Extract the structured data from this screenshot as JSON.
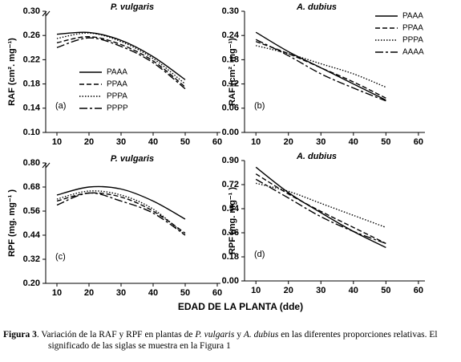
{
  "chart_data": [
    {
      "type": "line",
      "title": "P. vulgaris",
      "ylabel": "RAF (cm². mg⁻¹)",
      "annotation": "(a)",
      "legend": "lower-left",
      "x": [
        10,
        20,
        30,
        40,
        50
      ],
      "xlim": [
        6.5,
        61
      ],
      "xticks": [
        10,
        20,
        30,
        40,
        50,
        60
      ],
      "ylim": [
        0.1,
        0.3
      ],
      "yticks": [
        {
          "value": 0.1,
          "label": "0.10"
        },
        0.14,
        0.18,
        0.22,
        0.26,
        {
          "value": 0.3,
          "label": "0.30"
        }
      ],
      "series": [
        {
          "name": "PAAA",
          "color": "#000000",
          "dash": "solid",
          "values": [
            0.262,
            0.265,
            0.252,
            0.225,
            0.187
          ]
        },
        {
          "name": "PPAA",
          "color": "#000000",
          "dash": "dashed",
          "values": [
            0.248,
            0.258,
            0.245,
            0.218,
            0.175
          ]
        },
        {
          "name": "PPPA",
          "color": "#000000",
          "dash": "dotted",
          "values": [
            0.255,
            0.264,
            0.25,
            0.222,
            0.18
          ]
        },
        {
          "name": "PPPP",
          "color": "#000000",
          "dash": "dashdot",
          "values": [
            0.24,
            0.256,
            0.242,
            0.215,
            0.172
          ]
        }
      ]
    },
    {
      "type": "line",
      "title": "A. dubius",
      "ylabel": "RAF (cm². mg⁻¹)",
      "annotation": "(b)",
      "legend": "upper-right",
      "x": [
        10,
        20,
        30,
        40,
        50
      ],
      "xlim": [
        6.5,
        62
      ],
      "xticks": [
        10,
        20,
        30,
        40,
        50,
        60
      ],
      "ylim": [
        0,
        0.3
      ],
      "yticks": [
        {
          "value": 0,
          "label": "0.00"
        },
        0.06,
        0.12,
        0.18,
        0.24,
        {
          "value": 0.3,
          "label": "0.30"
        }
      ],
      "series": [
        {
          "name": "PAAA",
          "color": "#000000",
          "dash": "solid",
          "values": [
            0.248,
            0.2,
            0.16,
            0.12,
            0.08
          ]
        },
        {
          "name": "PPAA",
          "color": "#000000",
          "dash": "dashed",
          "values": [
            0.225,
            0.195,
            0.16,
            0.125,
            0.085
          ]
        },
        {
          "name": "PPPA",
          "color": "#000000",
          "dash": "dotted",
          "values": [
            0.215,
            0.195,
            0.17,
            0.145,
            0.112
          ]
        },
        {
          "name": "AAAA",
          "color": "#000000",
          "dash": "dashdot",
          "values": [
            0.23,
            0.19,
            0.145,
            0.11,
            0.078
          ]
        }
      ]
    },
    {
      "type": "line",
      "title": "P. vulgaris",
      "ylabel": "RPF (mg. mg⁻¹ )",
      "annotation": "(c)",
      "x": [
        10,
        20,
        30,
        40,
        50
      ],
      "xlim": [
        6.5,
        61
      ],
      "xticks": [
        10,
        20,
        30,
        40,
        50,
        60
      ],
      "ylim": [
        0.2,
        0.8
      ],
      "yticks": [
        {
          "value": 0.2,
          "label": "0.20"
        },
        0.32,
        0.44,
        0.56,
        0.68,
        {
          "value": 0.8,
          "label": "0.80"
        }
      ],
      "series": [
        {
          "color": "#000000",
          "dash": "solid",
          "values": [
            0.64,
            0.68,
            0.67,
            0.61,
            0.52
          ]
        },
        {
          "color": "#000000",
          "dash": "dashed",
          "values": [
            0.61,
            0.65,
            0.63,
            0.56,
            0.45
          ]
        },
        {
          "color": "#000000",
          "dash": "dotted",
          "values": [
            0.62,
            0.66,
            0.64,
            0.57,
            0.44
          ]
        },
        {
          "color": "#000000",
          "dash": "dashdot",
          "values": [
            0.59,
            0.65,
            0.61,
            0.55,
            0.44
          ]
        }
      ]
    },
    {
      "type": "line",
      "title": "A. dubius",
      "ylabel": "RPF (mg. mg⁻¹ )",
      "annotation": "(d)",
      "x": [
        10,
        20,
        30,
        40,
        50
      ],
      "xlim": [
        6.5,
        62
      ],
      "xticks": [
        10,
        20,
        30,
        40,
        50,
        60
      ],
      "ylim": [
        0,
        0.9
      ],
      "yticks": [
        {
          "value": 0,
          "label": "0.00"
        },
        0.18,
        0.36,
        0.54,
        0.72,
        {
          "value": 0.9,
          "label": "0.90"
        }
      ],
      "series": [
        {
          "color": "#000000",
          "dash": "solid",
          "values": [
            0.85,
            0.66,
            0.51,
            0.37,
            0.25
          ]
        },
        {
          "color": "#000000",
          "dash": "dashed",
          "values": [
            0.8,
            0.65,
            0.52,
            0.4,
            0.28
          ]
        },
        {
          "color": "#000000",
          "dash": "dotted",
          "values": [
            0.73,
            0.67,
            0.58,
            0.49,
            0.4
          ]
        },
        {
          "color": "#000000",
          "dash": "dashdot",
          "values": [
            0.76,
            0.62,
            0.48,
            0.37,
            0.28
          ]
        }
      ]
    }
  ],
  "xlabel": "EDAD DE LA PLANTA (dde)",
  "caption": {
    "label": "Figura 3",
    "parts": [
      ". Variación de la RAF y RPF en plantas de ",
      "P. vulgaris",
      " y  ",
      "A. dubius",
      " en las diferentes proporciones relativas. El significado de las siglas se muestra en la Figura 1"
    ]
  }
}
